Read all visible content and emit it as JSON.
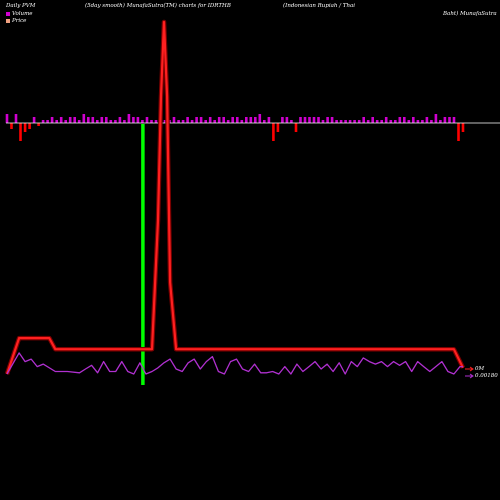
{
  "header": {
    "left": "Daily PVM",
    "middle": "(5day smooth) MunafaSutra(TM) charts for IDRTHB",
    "right": "(Indonesian  Rupiah  /  Thai",
    "right2": "Baht) MunafaSutra"
  },
  "legend": {
    "volume": "Volume",
    "price": "Price"
  },
  "colors": {
    "volume_pos": "#d000d0",
    "volume_neg": "#ff0000",
    "price_line": "#ff2020",
    "pvm_line": "#b030d0",
    "highlight": "#00ff00",
    "zero_line": "#ffffff"
  },
  "chart_data": {
    "type": "line",
    "axis_labels": {
      "volume_zero": "0M",
      "price_level": "0.00180"
    },
    "highlight_index": 45,
    "volume_bars": [
      3,
      -2,
      3,
      -6,
      -3,
      -2,
      2,
      -1,
      1,
      1,
      2,
      1,
      2,
      1,
      2,
      2,
      1,
      3,
      2,
      2,
      1,
      2,
      2,
      1,
      1,
      2,
      1,
      3,
      2,
      2,
      1,
      2,
      1,
      1,
      1,
      1,
      1,
      2,
      1,
      1,
      2,
      1,
      2,
      2,
      1,
      2,
      1,
      2,
      2,
      1,
      2,
      2,
      1,
      2,
      2,
      2,
      3,
      1,
      2,
      -6,
      -3,
      2,
      2,
      1,
      -3,
      2,
      2,
      2,
      2,
      2,
      1,
      2,
      2,
      1,
      1,
      1,
      1,
      1,
      1,
      2,
      1,
      2,
      1,
      1,
      2,
      1,
      1,
      2,
      2,
      1,
      2,
      1,
      1,
      2,
      1,
      3,
      1,
      2,
      2,
      2,
      -6,
      -3
    ],
    "price_line": [
      [
        0,
        0.00176
      ],
      [
        4,
        0.00205
      ],
      [
        14,
        0.00205
      ],
      [
        16,
        0.00196
      ],
      [
        44,
        0.00196
      ],
      [
        46,
        0.00196
      ],
      [
        48,
        0.00196
      ],
      [
        50,
        0.003
      ],
      [
        51,
        0.004
      ],
      [
        52,
        0.0046
      ],
      [
        53,
        0.004
      ],
      [
        54,
        0.0025
      ],
      [
        56,
        0.00196
      ],
      [
        148,
        0.00196
      ],
      [
        151,
        0.00181
      ]
    ],
    "pvm_line": [
      [
        0,
        0.00176
      ],
      [
        4,
        0.00193
      ],
      [
        6,
        0.00186
      ],
      [
        8,
        0.00188
      ],
      [
        10,
        0.00182
      ],
      [
        12,
        0.00184
      ],
      [
        16,
        0.00178
      ],
      [
        20,
        0.00178
      ],
      [
        24,
        0.00177
      ],
      [
        26,
        0.0018
      ],
      [
        28,
        0.00183
      ],
      [
        30,
        0.00177
      ],
      [
        32,
        0.00186
      ],
      [
        34,
        0.00178
      ],
      [
        36,
        0.00178
      ],
      [
        38,
        0.00186
      ],
      [
        40,
        0.00178
      ],
      [
        42,
        0.00176
      ],
      [
        44,
        0.00185
      ],
      [
        46,
        0.00176
      ],
      [
        48,
        0.00178
      ],
      [
        50,
        0.00181
      ],
      [
        52,
        0.00185
      ],
      [
        54,
        0.00188
      ],
      [
        56,
        0.0018
      ],
      [
        58,
        0.00178
      ],
      [
        60,
        0.00185
      ],
      [
        62,
        0.00188
      ],
      [
        64,
        0.0018
      ],
      [
        66,
        0.00186
      ],
      [
        68,
        0.0019
      ],
      [
        70,
        0.00178
      ],
      [
        72,
        0.00176
      ],
      [
        74,
        0.00186
      ],
      [
        76,
        0.00188
      ],
      [
        78,
        0.0018
      ],
      [
        80,
        0.00178
      ],
      [
        82,
        0.00184
      ],
      [
        84,
        0.00177
      ],
      [
        86,
        0.00177
      ],
      [
        88,
        0.00178
      ],
      [
        90,
        0.00176
      ],
      [
        92,
        0.00182
      ],
      [
        94,
        0.00176
      ],
      [
        96,
        0.00184
      ],
      [
        98,
        0.00178
      ],
      [
        100,
        0.00182
      ],
      [
        102,
        0.00186
      ],
      [
        104,
        0.0018
      ],
      [
        106,
        0.00184
      ],
      [
        108,
        0.00178
      ],
      [
        110,
        0.00185
      ],
      [
        112,
        0.00176
      ],
      [
        114,
        0.00186
      ],
      [
        116,
        0.00182
      ],
      [
        118,
        0.00189
      ],
      [
        120,
        0.00186
      ],
      [
        122,
        0.00184
      ],
      [
        124,
        0.00186
      ],
      [
        126,
        0.00182
      ],
      [
        128,
        0.00186
      ],
      [
        130,
        0.00183
      ],
      [
        132,
        0.00186
      ],
      [
        134,
        0.00178
      ],
      [
        136,
        0.00186
      ],
      [
        138,
        0.00182
      ],
      [
        140,
        0.00178
      ],
      [
        142,
        0.00182
      ],
      [
        144,
        0.00186
      ],
      [
        146,
        0.00178
      ],
      [
        148,
        0.00176
      ],
      [
        150,
        0.00182
      ],
      [
        151,
        0.00182
      ]
    ]
  }
}
